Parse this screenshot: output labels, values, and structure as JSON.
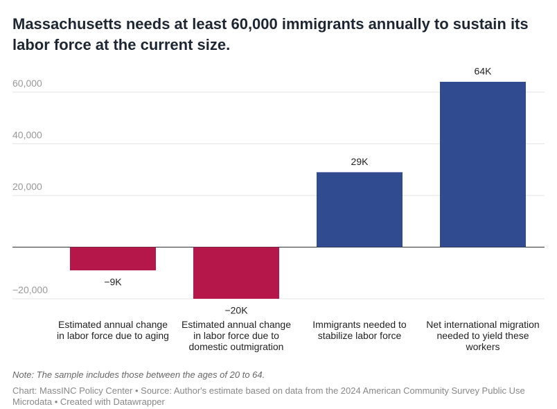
{
  "chart_data": {
    "type": "bar",
    "title": "Massachusetts needs at least 60,000 immigrants annually to sustain its labor force at the current size.",
    "categories": [
      "Estimated annual change in labor force due to aging",
      "Estimated annual change in labor force due to domestic outmigration",
      "Immigrants needed to stabilize labor force",
      "Net international migration needed to yield these workers"
    ],
    "values": [
      -9000,
      -20000,
      29000,
      64000
    ],
    "value_labels": [
      "−9K",
      "−20K",
      "29K",
      "64K"
    ],
    "colors": [
      "#b5174b",
      "#b5174b",
      "#304b8f",
      "#304b8f"
    ],
    "ylim": [
      -20000,
      64000
    ],
    "yticks": [
      {
        "value": 60000,
        "label": "60,000"
      },
      {
        "value": 40000,
        "label": "40,000"
      },
      {
        "value": 20000,
        "label": "20,000"
      },
      {
        "value": -20000,
        "label": "−20,000"
      }
    ],
    "grid": true,
    "note": "Note: The sample includes those between the ages of 20 to 64.",
    "source": "Chart: MassINC Policy Center • Source: Author's estimate based on data from the 2024 American Community Survey Public Use Microdata • Created with Datawrapper"
  }
}
